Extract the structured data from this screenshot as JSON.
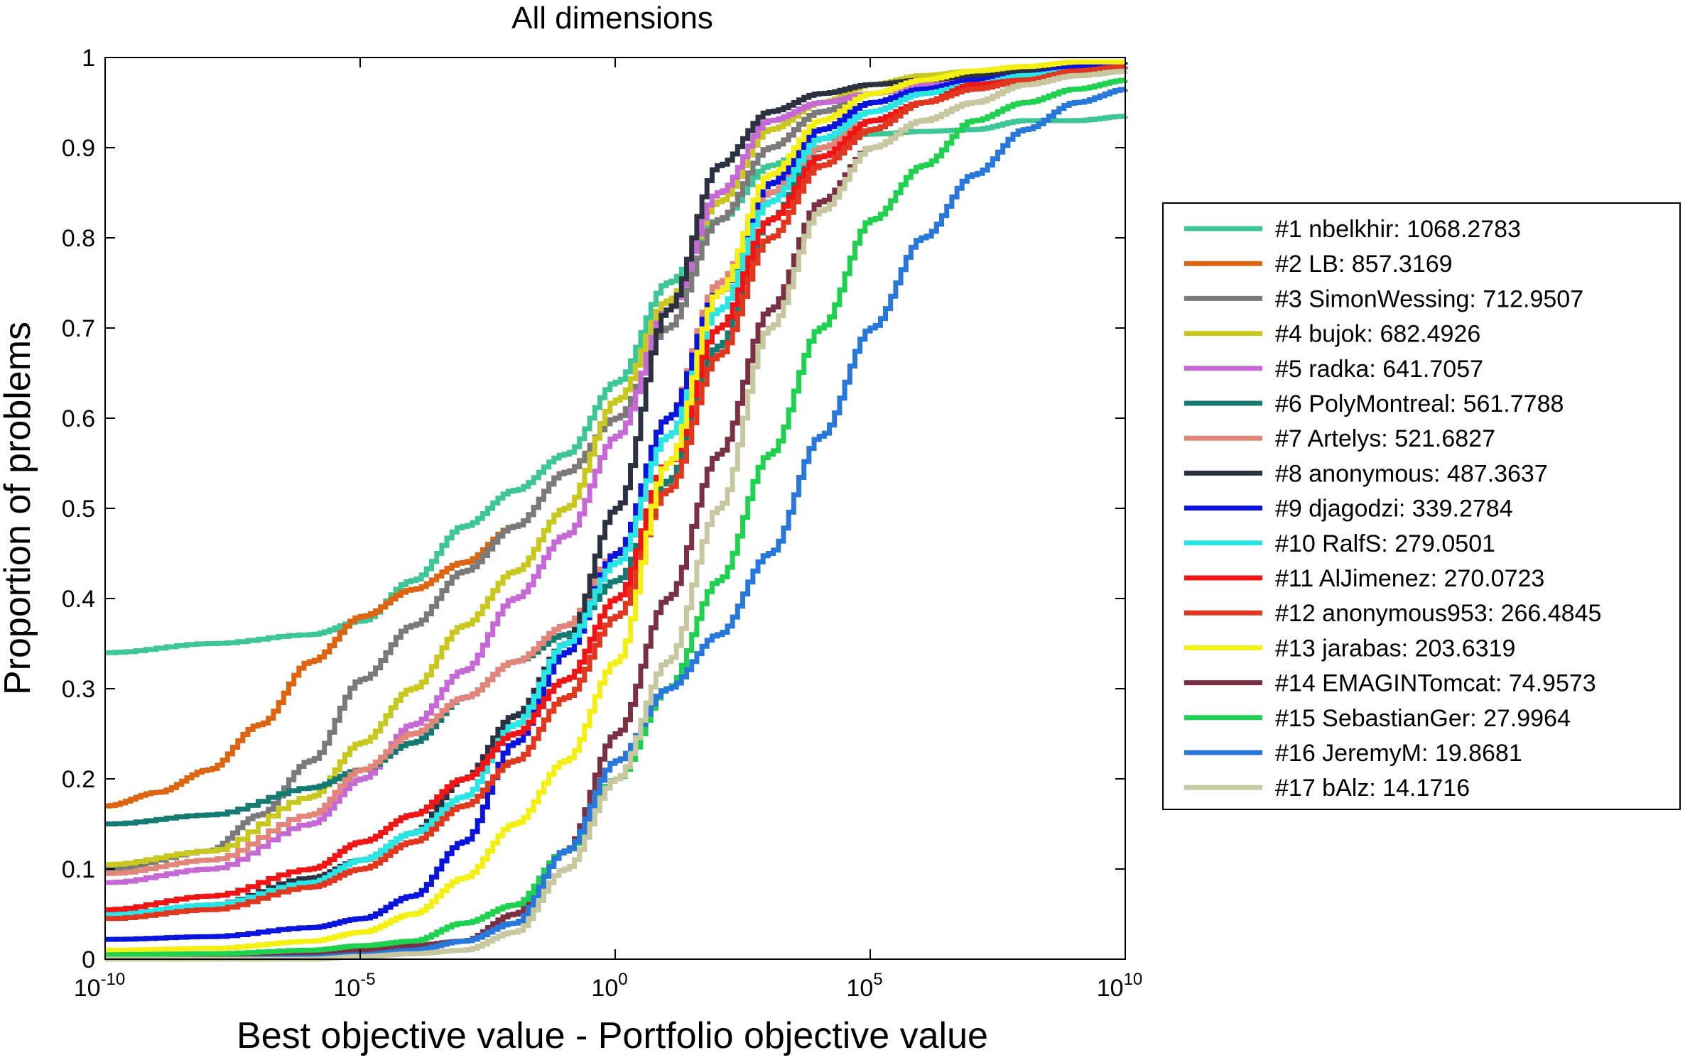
{
  "chart_data": {
    "type": "line",
    "title": "All dimensions",
    "xlabel": "Best objective value - Portfolio objective value",
    "ylabel": "Proportion of problems",
    "xscale": "log",
    "xlim": [
      -10,
      10
    ],
    "ylim": [
      0,
      1
    ],
    "grid": false,
    "legend_position": "right",
    "x_ticks": [
      {
        "pos": -10,
        "base": "10",
        "exp": "-10"
      },
      {
        "pos": -5,
        "base": "10",
        "exp": "-5"
      },
      {
        "pos": 0,
        "base": "10",
        "exp": "0"
      },
      {
        "pos": 5,
        "base": "10",
        "exp": "5"
      },
      {
        "pos": 10,
        "base": "10",
        "exp": "10"
      }
    ],
    "y_ticks": [
      {
        "pos": 0,
        "label": "0"
      },
      {
        "pos": 0.1,
        "label": "0.1"
      },
      {
        "pos": 0.2,
        "label": "0.2"
      },
      {
        "pos": 0.3,
        "label": "0.3"
      },
      {
        "pos": 0.4,
        "label": "0.4"
      },
      {
        "pos": 0.5,
        "label": "0.5"
      },
      {
        "pos": 0.6,
        "label": "0.6"
      },
      {
        "pos": 0.7,
        "label": "0.7"
      },
      {
        "pos": 0.8,
        "label": "0.8"
      },
      {
        "pos": 0.9,
        "label": "0.9"
      },
      {
        "pos": 1,
        "label": "1"
      }
    ],
    "series": [
      {
        "name": "#1 nbelkhir: 1068.2783",
        "color": "#3EC796",
        "x": [
          -10,
          -8,
          -6,
          -5,
          -4,
          -3,
          -2,
          -1,
          0,
          1,
          2,
          3,
          4,
          5,
          6,
          7,
          8,
          9,
          10
        ],
        "y": [
          0.34,
          0.35,
          0.36,
          0.375,
          0.42,
          0.48,
          0.52,
          0.56,
          0.64,
          0.75,
          0.82,
          0.88,
          0.91,
          0.915,
          0.918,
          0.92,
          0.93,
          0.93,
          0.935
        ]
      },
      {
        "name": "#2 LB: 857.3169",
        "color": "#DD6512",
        "x": [
          -10,
          -9,
          -8,
          -7,
          -6,
          -5,
          -4,
          -3,
          -2,
          -1,
          0,
          1,
          2,
          3,
          4,
          5,
          6,
          7,
          8,
          9,
          10
        ],
        "y": [
          0.17,
          0.185,
          0.21,
          0.26,
          0.33,
          0.38,
          0.41,
          0.44,
          0.48,
          0.54,
          0.6,
          0.7,
          0.82,
          0.9,
          0.94,
          0.96,
          0.97,
          0.975,
          0.98,
          0.985,
          0.99
        ]
      },
      {
        "name": "#3 SimonWessing: 712.9507",
        "color": "#7A7A7A",
        "x": [
          -10,
          -8,
          -7,
          -6,
          -5,
          -4,
          -3,
          -2,
          -1,
          0,
          1,
          2,
          3,
          4,
          5,
          6,
          7,
          8,
          9,
          10
        ],
        "y": [
          0.1,
          0.12,
          0.16,
          0.22,
          0.31,
          0.37,
          0.43,
          0.48,
          0.54,
          0.6,
          0.7,
          0.82,
          0.9,
          0.94,
          0.96,
          0.97,
          0.975,
          0.98,
          0.985,
          0.99
        ]
      },
      {
        "name": "#4 bujok: 682.4926",
        "color": "#C8C81E",
        "x": [
          -10,
          -8,
          -6,
          -5,
          -4,
          -3,
          -2,
          -1,
          0,
          1,
          2,
          3,
          4,
          5,
          6,
          7,
          8,
          9,
          10
        ],
        "y": [
          0.105,
          0.12,
          0.18,
          0.24,
          0.3,
          0.37,
          0.43,
          0.5,
          0.62,
          0.73,
          0.84,
          0.92,
          0.95,
          0.97,
          0.98,
          0.985,
          0.99,
          0.992,
          0.995
        ]
      },
      {
        "name": "#5 radka: 641.7057",
        "color": "#C669D6",
        "x": [
          -10,
          -8,
          -6,
          -5,
          -4,
          -3,
          -2,
          -1,
          0,
          1,
          2,
          3,
          4,
          5,
          6,
          7,
          8,
          9,
          10
        ],
        "y": [
          0.085,
          0.1,
          0.15,
          0.2,
          0.26,
          0.32,
          0.4,
          0.47,
          0.58,
          0.72,
          0.85,
          0.93,
          0.95,
          0.96,
          0.97,
          0.98,
          0.985,
          0.99,
          0.99
        ]
      },
      {
        "name": "#6 PolyMontreal: 561.7788",
        "color": "#147A72",
        "x": [
          -10,
          -8,
          -6,
          -5,
          -4,
          -3,
          -2,
          -1,
          0,
          1,
          2,
          3,
          4,
          5,
          6,
          7,
          8,
          9,
          10
        ],
        "y": [
          0.15,
          0.16,
          0.19,
          0.21,
          0.24,
          0.29,
          0.33,
          0.36,
          0.42,
          0.53,
          0.68,
          0.82,
          0.9,
          0.93,
          0.95,
          0.97,
          0.98,
          0.985,
          0.99
        ]
      },
      {
        "name": "#7 Artelys: 521.6827",
        "color": "#E2857A",
        "x": [
          -10,
          -8,
          -6,
          -5,
          -4,
          -3,
          -2,
          -1,
          0,
          1,
          2,
          3,
          4,
          5,
          6,
          7,
          8,
          9,
          10
        ],
        "y": [
          0.095,
          0.11,
          0.16,
          0.21,
          0.25,
          0.29,
          0.33,
          0.37,
          0.45,
          0.6,
          0.75,
          0.85,
          0.9,
          0.93,
          0.95,
          0.97,
          0.98,
          0.985,
          0.99
        ]
      },
      {
        "name": "#8 anonymous: 487.3637",
        "color": "#2B3140",
        "x": [
          -10,
          -8,
          -6,
          -5,
          -4,
          -3,
          -2,
          -1,
          0,
          1,
          2,
          3,
          4,
          5,
          6,
          7,
          8,
          9,
          10
        ],
        "y": [
          0.05,
          0.06,
          0.09,
          0.11,
          0.14,
          0.2,
          0.27,
          0.35,
          0.5,
          0.72,
          0.88,
          0.94,
          0.96,
          0.97,
          0.975,
          0.98,
          0.985,
          0.99,
          0.995
        ]
      },
      {
        "name": "#9 djagodzi: 339.2784",
        "color": "#0A14DC",
        "x": [
          -10,
          -8,
          -6,
          -5,
          -4,
          -3,
          -2,
          -1,
          0,
          1,
          2,
          3,
          4,
          5,
          6,
          7,
          8,
          9,
          10
        ],
        "y": [
          0.022,
          0.025,
          0.035,
          0.045,
          0.07,
          0.13,
          0.24,
          0.34,
          0.45,
          0.6,
          0.74,
          0.86,
          0.92,
          0.95,
          0.965,
          0.975,
          0.98,
          0.99,
          0.99
        ]
      },
      {
        "name": "#10 RalfS: 279.0501",
        "color": "#28E6E6",
        "x": [
          -10,
          -8,
          -6,
          -5,
          -4,
          -3,
          -2,
          -1,
          0,
          1,
          2,
          3,
          4,
          5,
          6,
          7,
          8,
          9,
          10
        ],
        "y": [
          0.05,
          0.06,
          0.085,
          0.11,
          0.14,
          0.18,
          0.26,
          0.35,
          0.44,
          0.58,
          0.72,
          0.84,
          0.91,
          0.94,
          0.96,
          0.97,
          0.98,
          0.985,
          0.99
        ]
      },
      {
        "name": "#11 AlJimenez: 270.0723",
        "color": "#F01414",
        "x": [
          -10,
          -8,
          -6,
          -5,
          -4,
          -3,
          -2,
          -1,
          0,
          1,
          2,
          3,
          4,
          5,
          6,
          7,
          8,
          9,
          10
        ],
        "y": [
          0.055,
          0.07,
          0.1,
          0.13,
          0.16,
          0.2,
          0.25,
          0.31,
          0.4,
          0.55,
          0.7,
          0.82,
          0.89,
          0.93,
          0.95,
          0.97,
          0.975,
          0.985,
          0.99
        ]
      },
      {
        "name": "#12 anonymous953: 266.4845",
        "color": "#E0371E",
        "x": [
          -10,
          -8,
          -6,
          -5,
          -4,
          -3,
          -2,
          -1,
          0,
          1,
          2,
          3,
          4,
          5,
          6,
          7,
          8,
          9,
          10
        ],
        "y": [
          0.045,
          0.055,
          0.08,
          0.1,
          0.13,
          0.17,
          0.22,
          0.29,
          0.38,
          0.52,
          0.67,
          0.8,
          0.88,
          0.92,
          0.95,
          0.965,
          0.975,
          0.985,
          0.99
        ]
      },
      {
        "name": "#13 jarabas: 203.6319",
        "color": "#F5F014",
        "x": [
          -10,
          -8,
          -6,
          -5,
          -4,
          -3,
          -2,
          -1,
          0,
          1,
          2,
          3,
          4,
          5,
          6,
          7,
          8,
          9,
          10
        ],
        "y": [
          0.01,
          0.012,
          0.02,
          0.03,
          0.05,
          0.09,
          0.15,
          0.22,
          0.33,
          0.55,
          0.74,
          0.87,
          0.93,
          0.96,
          0.975,
          0.985,
          0.99,
          0.995,
          0.995
        ]
      },
      {
        "name": "#14 EMAGINTomcat: 74.9573",
        "color": "#7A2F43",
        "x": [
          -10,
          -8,
          -6,
          -5,
          -4,
          -3,
          -2,
          -1,
          0,
          1,
          2,
          3,
          4,
          5,
          6,
          7,
          8,
          9,
          10
        ],
        "y": [
          0.0,
          0.002,
          0.006,
          0.01,
          0.015,
          0.02,
          0.05,
          0.12,
          0.25,
          0.4,
          0.56,
          0.72,
          0.84,
          0.9,
          0.93,
          0.95,
          0.97,
          0.98,
          0.985
        ]
      },
      {
        "name": "#15 SebastianGer: 27.9964",
        "color": "#1ED250",
        "x": [
          -10,
          -8,
          -6,
          -5,
          -4,
          -3,
          -2,
          -1,
          0,
          1,
          2,
          3,
          4,
          5,
          6,
          7,
          8,
          9,
          10
        ],
        "y": [
          0.005,
          0.006,
          0.01,
          0.015,
          0.02,
          0.04,
          0.06,
          0.12,
          0.2,
          0.3,
          0.42,
          0.56,
          0.7,
          0.82,
          0.88,
          0.93,
          0.95,
          0.965,
          0.975
        ]
      },
      {
        "name": "#16 JeremyM: 19.8681",
        "color": "#2878DC",
        "x": [
          -10,
          -8,
          -6,
          -5,
          -4,
          -3,
          -2,
          -1,
          0,
          1,
          2,
          3,
          4,
          5,
          6,
          7,
          8,
          9,
          10
        ],
        "y": [
          0.0,
          0.0,
          0.002,
          0.005,
          0.01,
          0.02,
          0.04,
          0.12,
          0.22,
          0.3,
          0.36,
          0.45,
          0.58,
          0.7,
          0.8,
          0.87,
          0.92,
          0.95,
          0.965
        ]
      },
      {
        "name": "#17 bAlz: 14.1716",
        "color": "#C8C8A0",
        "x": [
          -10,
          -8,
          -6,
          -5,
          -4,
          -3,
          -2,
          -1,
          0,
          1,
          2,
          3,
          4,
          5,
          6,
          7,
          8,
          9,
          10
        ],
        "y": [
          0.0,
          0.0,
          0.0,
          0.003,
          0.006,
          0.01,
          0.03,
          0.1,
          0.2,
          0.33,
          0.5,
          0.7,
          0.83,
          0.9,
          0.93,
          0.95,
          0.97,
          0.98,
          0.985
        ]
      }
    ]
  }
}
